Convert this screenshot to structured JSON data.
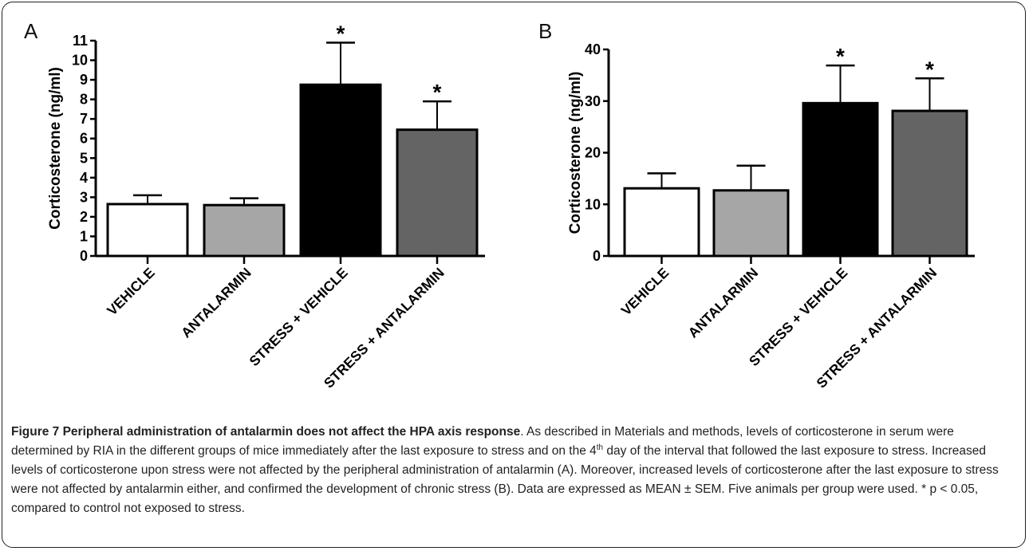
{
  "chart_data": [
    {
      "type": "bar",
      "panel_label": "A",
      "categories": [
        "VEHICLE",
        "ANTALARMIN",
        "STRESS + VEHICLE",
        "STRESS + ANTALARMIN"
      ],
      "values": [
        2.65,
        2.6,
        8.75,
        6.45
      ],
      "error": [
        0.45,
        0.35,
        2.15,
        1.45
      ],
      "significant": [
        false,
        false,
        true,
        true
      ],
      "significance_marker": "*",
      "colors": [
        "#ffffff",
        "#a6a6a6",
        "#000000",
        "#646464"
      ],
      "ylabel": "Corticosterone (ng/ml)",
      "ylim": [
        0,
        11
      ],
      "yticks": [
        0,
        1,
        2,
        3,
        4,
        5,
        6,
        7,
        8,
        9,
        10,
        11
      ]
    },
    {
      "type": "bar",
      "panel_label": "B",
      "categories": [
        "VEHICLE",
        "ANTALARMIN",
        "STRESS + VEHICLE",
        "STRESS + ANTALARMIN"
      ],
      "values": [
        13.1,
        12.7,
        29.6,
        28.1
      ],
      "error": [
        2.9,
        4.8,
        7.3,
        6.3
      ],
      "significant": [
        false,
        false,
        true,
        true
      ],
      "significance_marker": "*",
      "colors": [
        "#ffffff",
        "#a6a6a6",
        "#000000",
        "#646464"
      ],
      "ylabel": "Corticosterone (ng/ml)",
      "ylim": [
        0,
        40
      ],
      "yticks": [
        0,
        10,
        20,
        30,
        40
      ]
    }
  ],
  "caption": {
    "title": "Figure 7 Peripheral administration of antalarmin does not affect the HPA axis response",
    "text_1": ". As described in Materials and methods, levels of corticosterone in serum were determined by RIA in the different groups of mice immediately after the last exposure to stress and on the 4",
    "sup": "th",
    "text_2": " day of the interval that followed the last exposure to stress. Increased levels of corticosterone upon stress were not affected by the peripheral administration of antalarmin (A). Moreover, increased levels of corticosterone after the last exposure to stress were not affected by antalarmin either, and confirmed the development of chronic stress (B). Data are expressed as MEAN ± SEM. Five animals per group were used. * p < 0.05, compared to control not exposed to stress."
  }
}
